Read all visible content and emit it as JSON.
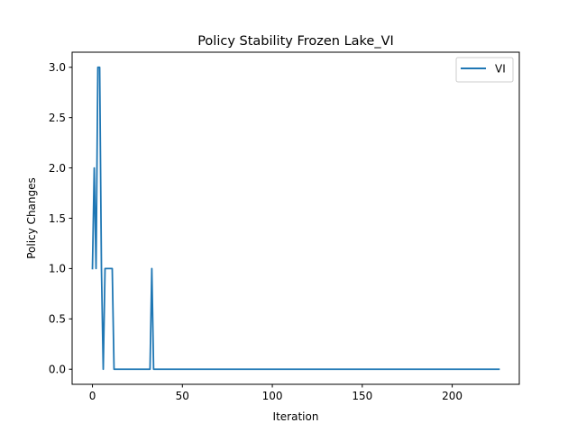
{
  "chart_data": {
    "type": "line",
    "title": "Policy Stability Frozen Lake_VI",
    "xlabel": "Iteration",
    "ylabel": "Policy Changes",
    "xlim": [
      -11.3,
      237.3
    ],
    "ylim": [
      -0.15,
      3.15
    ],
    "xticks": [
      0,
      50,
      100,
      150,
      200
    ],
    "yticks": [
      0.0,
      0.5,
      1.0,
      1.5,
      2.0,
      2.5,
      3.0
    ],
    "xtick_labels": [
      "0",
      "50",
      "100",
      "150",
      "200"
    ],
    "ytick_labels": [
      "0.0",
      "0.5",
      "1.0",
      "1.5",
      "2.0",
      "2.5",
      "3.0"
    ],
    "grid": false,
    "legend_position": "top-right",
    "series": [
      {
        "name": "VI",
        "color": "#1f77b4",
        "x": [
          0,
          1,
          2,
          3,
          4,
          5,
          6,
          7,
          8,
          9,
          10,
          11,
          12,
          13,
          14,
          31,
          32,
          33,
          34,
          35,
          226
        ],
        "y": [
          1,
          2,
          1,
          3,
          3,
          1,
          0,
          1,
          1,
          1,
          1,
          1,
          0,
          0,
          0,
          0,
          0,
          1,
          0,
          0,
          0
        ]
      }
    ]
  }
}
